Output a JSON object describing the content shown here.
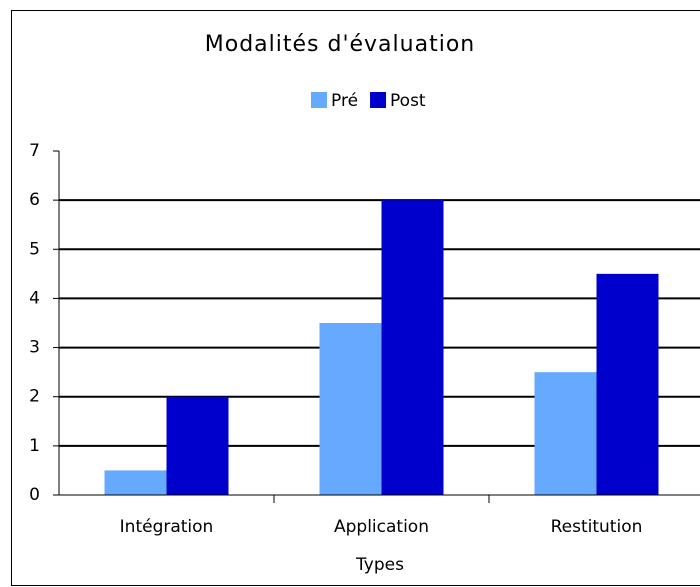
{
  "chart_data": {
    "type": "bar",
    "title": "Modalités d'évaluation",
    "x_label": "Types",
    "categories": [
      "Intégration",
      "Application",
      "Restitution"
    ],
    "series": [
      {
        "name": "Pré",
        "color": "#66aaff",
        "values": [
          0.5,
          3.5,
          2.5
        ]
      },
      {
        "name": "Post",
        "color": "#0000cc",
        "values": [
          2,
          6,
          4.5
        ]
      }
    ],
    "ylim": [
      0,
      7
    ],
    "yticks": [
      0,
      1,
      2,
      3,
      4,
      5,
      6,
      7
    ],
    "grid": true,
    "legend": "top"
  }
}
